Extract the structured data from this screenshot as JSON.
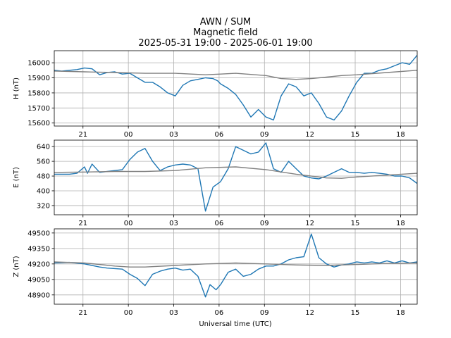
{
  "title": {
    "line1": "AWN / SUM",
    "line2": "Magnetic field",
    "line3": "2025-05-31 19:00 - 2025-06-01 19:00"
  },
  "xlabel": "Universal time (UTC)",
  "colors": {
    "data": "#1f77b4",
    "baseline": "#808080",
    "grid": "#b0b0b0"
  },
  "chart_data": [
    {
      "type": "line",
      "ylabel": "H (nT)",
      "x_ticks": [
        "21",
        "00",
        "03",
        "06",
        "09",
        "12",
        "15",
        "18"
      ],
      "y_ticks": [
        15600,
        15700,
        15800,
        15900,
        16000
      ],
      "xlim": [
        0,
        24
      ],
      "ylim": [
        15580,
        16080
      ],
      "grid": true,
      "series": [
        {
          "role": "data",
          "x": [
            0,
            0.5,
            1,
            1.5,
            2,
            2.5,
            3,
            3.5,
            4,
            4.5,
            5,
            5.5,
            6,
            6.5,
            7,
            7.5,
            8,
            8.5,
            9,
            9.5,
            10,
            10.5,
            10.8,
            11,
            11.5,
            12,
            12.5,
            13,
            13.5,
            14,
            14.5,
            15,
            15.5,
            16,
            16.5,
            17,
            17.5,
            18,
            18.5,
            19,
            19.5,
            20,
            20.5,
            21,
            21.5,
            22,
            22.5,
            23,
            23.5,
            24
          ],
          "y": [
            15950,
            15945,
            15950,
            15955,
            15965,
            15960,
            15920,
            15935,
            15940,
            15925,
            15930,
            15900,
            15870,
            15870,
            15840,
            15800,
            15780,
            15850,
            15880,
            15890,
            15900,
            15895,
            15880,
            15860,
            15830,
            15790,
            15720,
            15640,
            15690,
            15640,
            15620,
            15780,
            15860,
            15840,
            15780,
            15800,
            15730,
            15640,
            15620,
            15680,
            15780,
            15870,
            15930,
            15930,
            15950,
            15960,
            15980,
            16000,
            15990,
            16050
          ]
        },
        {
          "role": "baseline",
          "x": [
            0,
            2,
            4,
            6,
            8,
            10,
            11,
            12,
            14,
            15,
            16,
            17,
            18,
            19,
            20,
            22,
            24
          ],
          "y": [
            15945,
            15940,
            15935,
            15930,
            15930,
            15920,
            15925,
            15930,
            15915,
            15895,
            15890,
            15895,
            15905,
            15915,
            15920,
            15935,
            15950
          ]
        }
      ]
    },
    {
      "type": "line",
      "ylabel": "E (nT)",
      "x_ticks": [
        "21",
        "00",
        "03",
        "06",
        "09",
        "12",
        "15",
        "18"
      ],
      "y_ticks": [
        320,
        400,
        480,
        560,
        640
      ],
      "xlim": [
        0,
        24
      ],
      "ylim": [
        270,
        675
      ],
      "grid": true,
      "series": [
        {
          "role": "data",
          "x": [
            0,
            1,
            1.5,
            2,
            2.2,
            2.5,
            3,
            3.5,
            4,
            4.5,
            5,
            5.5,
            6,
            6.5,
            7,
            7.5,
            8,
            8.5,
            9,
            9.5,
            10,
            10.5,
            11,
            11.5,
            12,
            12.5,
            13,
            13.5,
            14,
            14.5,
            15,
            15.5,
            16,
            16.5,
            17,
            17.5,
            18,
            18.5,
            19,
            19.5,
            20,
            20.5,
            21,
            21.5,
            22,
            22.5,
            23,
            23.5,
            24
          ],
          "y": [
            490,
            490,
            495,
            530,
            495,
            545,
            500,
            505,
            510,
            515,
            570,
            610,
            630,
            560,
            510,
            530,
            540,
            545,
            540,
            520,
            290,
            420,
            450,
            520,
            640,
            620,
            600,
            610,
            660,
            520,
            500,
            560,
            520,
            480,
            470,
            465,
            480,
            500,
            520,
            500,
            500,
            495,
            500,
            495,
            490,
            480,
            480,
            470,
            440
          ]
        },
        {
          "role": "baseline",
          "x": [
            0,
            2,
            4,
            6,
            8,
            10,
            12,
            14,
            16,
            18,
            19,
            20,
            22,
            24
          ],
          "y": [
            500,
            502,
            505,
            505,
            510,
            525,
            530,
            515,
            490,
            470,
            468,
            475,
            485,
            495
          ]
        }
      ]
    },
    {
      "type": "line",
      "ylabel": "Z (nT)",
      "x_ticks": [
        "21",
        "00",
        "03",
        "06",
        "09",
        "12",
        "15",
        "18"
      ],
      "y_ticks": [
        48900,
        49050,
        49200,
        49350,
        49500
      ],
      "xlim": [
        0,
        24
      ],
      "ylim": [
        48810,
        49540
      ],
      "grid": true,
      "series": [
        {
          "role": "data",
          "x": [
            0,
            1,
            2,
            3,
            3.5,
            4,
            4.5,
            5,
            5.5,
            6,
            6.5,
            7,
            7.5,
            8,
            8.5,
            9,
            9.5,
            10,
            10.3,
            10.7,
            11,
            11.5,
            12,
            12.5,
            13,
            13.5,
            14,
            14.5,
            15,
            15.5,
            16,
            16.5,
            17,
            17.5,
            18,
            18.5,
            19,
            19.5,
            20,
            20.5,
            21,
            21.5,
            22,
            22.5,
            23,
            23.5,
            24
          ],
          "y": [
            49210,
            49215,
            49200,
            49170,
            49160,
            49155,
            49150,
            49100,
            49060,
            48990,
            49100,
            49130,
            49150,
            49160,
            49140,
            49150,
            49080,
            48880,
            49000,
            48950,
            49000,
            49120,
            49150,
            49080,
            49100,
            49150,
            49180,
            49180,
            49200,
            49240,
            49260,
            49270,
            49490,
            49260,
            49200,
            49170,
            49190,
            49200,
            49220,
            49210,
            49220,
            49210,
            49230,
            49210,
            49230,
            49210,
            49220
          ]
        },
        {
          "role": "baseline",
          "x": [
            0,
            2,
            4,
            5,
            6,
            8,
            10,
            12,
            14,
            16,
            18,
            20,
            22,
            24
          ],
          "y": [
            49220,
            49210,
            49180,
            49170,
            49170,
            49185,
            49200,
            49210,
            49200,
            49190,
            49185,
            49195,
            49205,
            49210
          ]
        }
      ]
    }
  ]
}
